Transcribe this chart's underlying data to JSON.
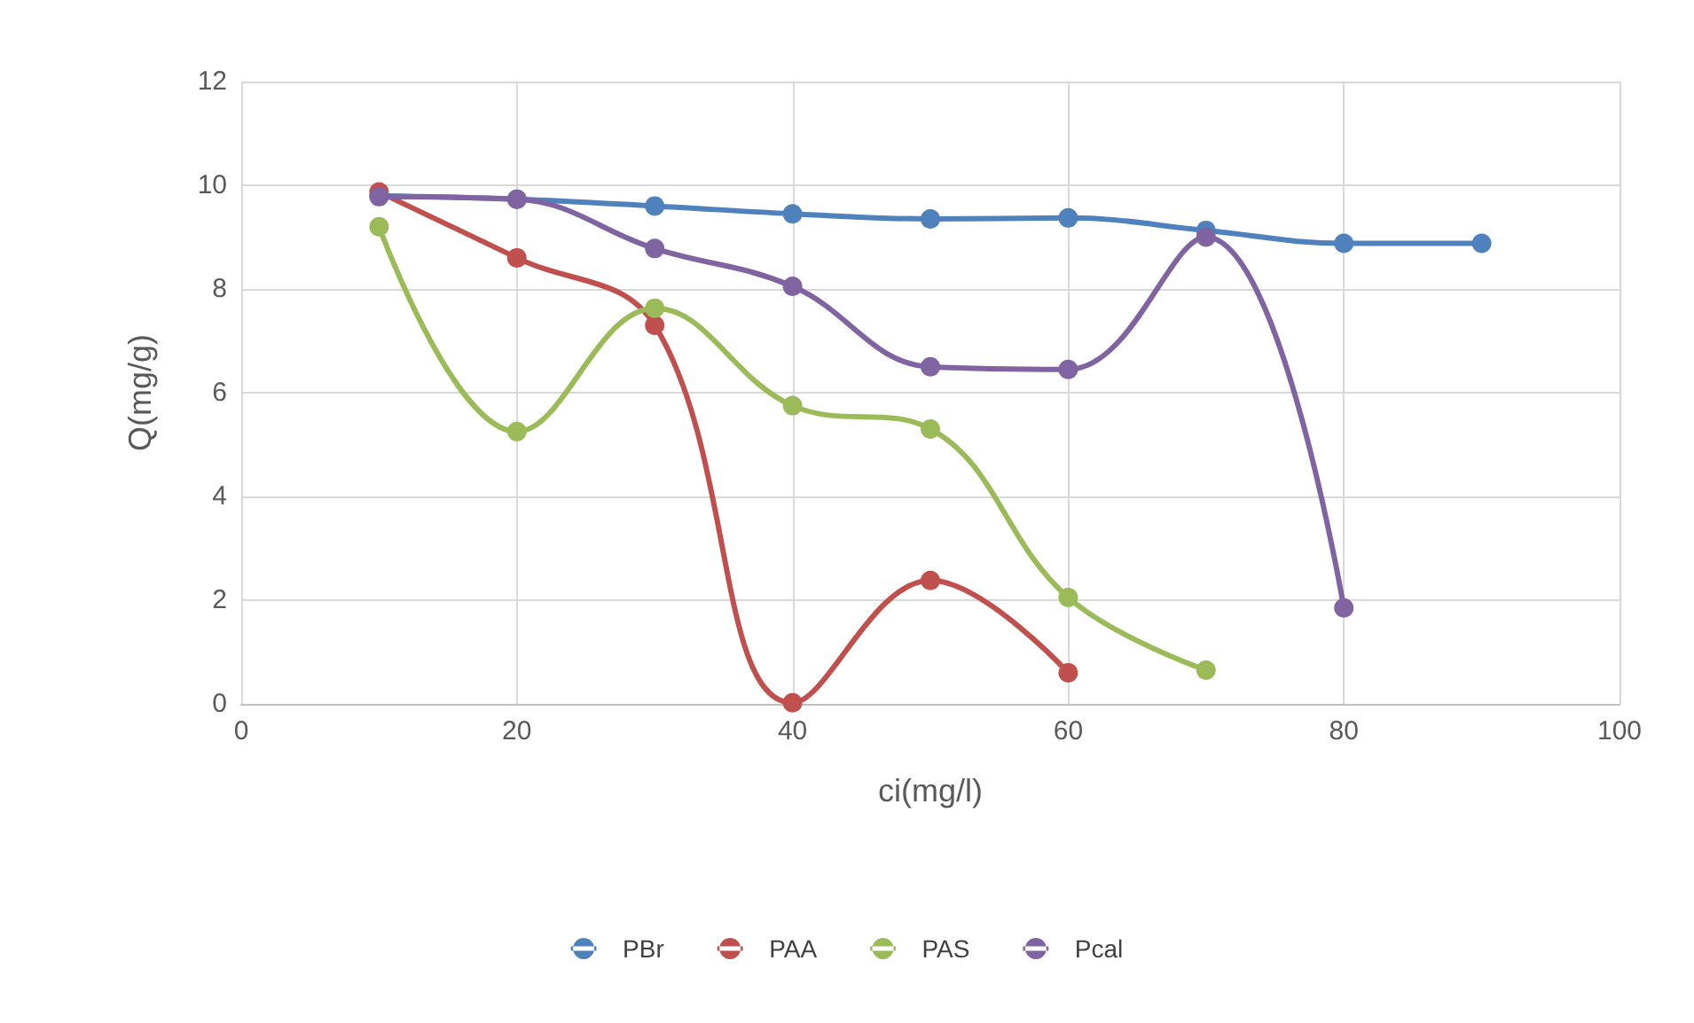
{
  "chart_data": {
    "type": "line",
    "xlabel": "ci(mg/l)",
    "ylabel": "Q(mg/g)",
    "xlim": [
      0,
      100
    ],
    "xticks": [
      0,
      20,
      40,
      60,
      80,
      100
    ],
    "ylim": [
      0,
      12
    ],
    "yticks": [
      0,
      2,
      4,
      6,
      8,
      10,
      12
    ],
    "grid": true,
    "legend": "bottom",
    "marker": "circle",
    "line_style": "solid",
    "series": [
      {
        "name": "PBr",
        "color": "#4f81bd",
        "x": [
          10,
          20,
          30,
          40,
          50,
          60,
          70,
          80,
          90
        ],
        "values": [
          9.8,
          9.73,
          9.6,
          9.45,
          9.35,
          9.37,
          9.13,
          8.88,
          8.88
        ]
      },
      {
        "name": "PAA",
        "color": "#c0504d",
        "x": [
          10,
          20,
          30,
          40,
          50,
          60
        ],
        "values": [
          9.87,
          8.6,
          7.3,
          0.02,
          2.38,
          0.6
        ]
      },
      {
        "name": "PAS",
        "color": "#9bbb59",
        "x": [
          10,
          20,
          30,
          40,
          50,
          60,
          70
        ],
        "values": [
          9.2,
          5.25,
          7.63,
          5.75,
          5.3,
          2.05,
          0.65
        ]
      },
      {
        "name": "Pcal",
        "color": "#8064a2",
        "x": [
          10,
          20,
          30,
          40,
          50,
          60,
          70,
          80
        ],
        "values": [
          9.78,
          9.73,
          8.78,
          8.05,
          6.5,
          6.45,
          9.0,
          1.85
        ]
      }
    ]
  }
}
